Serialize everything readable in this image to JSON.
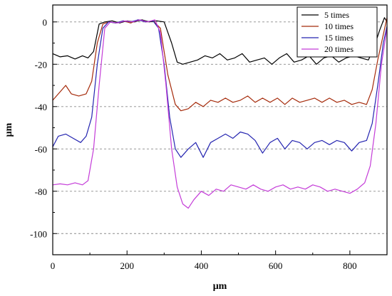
{
  "chart_data": {
    "type": "line",
    "title": "",
    "xlabel": "μm",
    "ylabel": "μm",
    "xlim": [
      0,
      900
    ],
    "ylim": [
      -110,
      8
    ],
    "xticks": [
      0,
      200,
      400,
      600,
      800
    ],
    "yticks": [
      0,
      -20,
      -40,
      -60,
      -80,
      -100
    ],
    "xtick_labels": [
      "0",
      "200",
      "400",
      "600",
      "800"
    ],
    "ytick_labels": [
      "0",
      "-20",
      "-40",
      "-60",
      "-80",
      "-100"
    ],
    "grid": "horizontal dashed",
    "legend_position": "top-right",
    "series": [
      {
        "name": "5 times",
        "color": "#000000",
        "points": [
          [
            0,
            -15
          ],
          [
            20,
            -16.5
          ],
          [
            40,
            -16
          ],
          [
            60,
            -17.5
          ],
          [
            80,
            -16
          ],
          [
            95,
            -17
          ],
          [
            110,
            -14
          ],
          [
            125,
            -1
          ],
          [
            140,
            0
          ],
          [
            160,
            0.5
          ],
          [
            180,
            -0.5
          ],
          [
            200,
            0.5
          ],
          [
            220,
            0
          ],
          [
            240,
            1
          ],
          [
            260,
            0
          ],
          [
            280,
            0.5
          ],
          [
            300,
            0
          ],
          [
            320,
            -10
          ],
          [
            335,
            -19
          ],
          [
            350,
            -20
          ],
          [
            370,
            -19
          ],
          [
            390,
            -18
          ],
          [
            410,
            -16
          ],
          [
            430,
            -17
          ],
          [
            450,
            -15
          ],
          [
            470,
            -18
          ],
          [
            490,
            -17
          ],
          [
            510,
            -15
          ],
          [
            530,
            -19
          ],
          [
            550,
            -18
          ],
          [
            570,
            -17
          ],
          [
            590,
            -20
          ],
          [
            610,
            -17
          ],
          [
            630,
            -15
          ],
          [
            650,
            -19
          ],
          [
            670,
            -18
          ],
          [
            690,
            -16
          ],
          [
            710,
            -20
          ],
          [
            730,
            -17
          ],
          [
            750,
            -16
          ],
          [
            770,
            -19
          ],
          [
            790,
            -17
          ],
          [
            810,
            -16
          ],
          [
            830,
            -17
          ],
          [
            850,
            -18
          ],
          [
            865,
            -12
          ],
          [
            880,
            -4
          ],
          [
            893,
            2
          ],
          [
            900,
            0
          ]
        ]
      },
      {
        "name": "10 times",
        "color": "#a52a0a",
        "points": [
          [
            0,
            -37
          ],
          [
            20,
            -33
          ],
          [
            35,
            -30
          ],
          [
            50,
            -34
          ],
          [
            70,
            -35
          ],
          [
            90,
            -34
          ],
          [
            105,
            -28
          ],
          [
            120,
            -10
          ],
          [
            135,
            -1
          ],
          [
            150,
            0
          ],
          [
            170,
            -0.5
          ],
          [
            190,
            0.5
          ],
          [
            210,
            -0.5
          ],
          [
            230,
            1
          ],
          [
            250,
            0
          ],
          [
            270,
            0.5
          ],
          [
            290,
            -3
          ],
          [
            310,
            -25
          ],
          [
            330,
            -39
          ],
          [
            345,
            -42
          ],
          [
            365,
            -41
          ],
          [
            385,
            -38
          ],
          [
            405,
            -40
          ],
          [
            425,
            -37
          ],
          [
            445,
            -38
          ],
          [
            465,
            -36
          ],
          [
            485,
            -38
          ],
          [
            505,
            -37
          ],
          [
            525,
            -35
          ],
          [
            545,
            -38
          ],
          [
            565,
            -36
          ],
          [
            585,
            -38
          ],
          [
            605,
            -36
          ],
          [
            625,
            -39
          ],
          [
            645,
            -36
          ],
          [
            665,
            -38
          ],
          [
            685,
            -37
          ],
          [
            705,
            -36
          ],
          [
            725,
            -38
          ],
          [
            745,
            -36
          ],
          [
            765,
            -38
          ],
          [
            785,
            -37
          ],
          [
            805,
            -39
          ],
          [
            825,
            -38
          ],
          [
            845,
            -39
          ],
          [
            860,
            -32
          ],
          [
            875,
            -18
          ],
          [
            890,
            -6
          ],
          [
            900,
            2
          ]
        ]
      },
      {
        "name": "15 times",
        "color": "#2424b0",
        "points": [
          [
            0,
            -59
          ],
          [
            15,
            -54
          ],
          [
            35,
            -53
          ],
          [
            55,
            -55
          ],
          [
            75,
            -57
          ],
          [
            90,
            -54
          ],
          [
            105,
            -45
          ],
          [
            120,
            -20
          ],
          [
            135,
            -3
          ],
          [
            150,
            0
          ],
          [
            170,
            -0.5
          ],
          [
            190,
            0.5
          ],
          [
            210,
            0
          ],
          [
            230,
            1
          ],
          [
            250,
            0
          ],
          [
            270,
            0.5
          ],
          [
            285,
            -3
          ],
          [
            300,
            -20
          ],
          [
            315,
            -45
          ],
          [
            330,
            -60
          ],
          [
            345,
            -64
          ],
          [
            365,
            -60
          ],
          [
            385,
            -57
          ],
          [
            405,
            -64
          ],
          [
            425,
            -57
          ],
          [
            445,
            -55
          ],
          [
            465,
            -53
          ],
          [
            485,
            -55
          ],
          [
            505,
            -52
          ],
          [
            525,
            -53
          ],
          [
            545,
            -56
          ],
          [
            565,
            -62
          ],
          [
            585,
            -57
          ],
          [
            605,
            -55
          ],
          [
            625,
            -60
          ],
          [
            645,
            -56
          ],
          [
            665,
            -57
          ],
          [
            685,
            -60
          ],
          [
            705,
            -57
          ],
          [
            725,
            -56
          ],
          [
            745,
            -58
          ],
          [
            765,
            -56
          ],
          [
            785,
            -57
          ],
          [
            805,
            -61
          ],
          [
            825,
            -57
          ],
          [
            845,
            -56
          ],
          [
            860,
            -48
          ],
          [
            875,
            -30
          ],
          [
            890,
            -10
          ],
          [
            900,
            -2
          ]
        ]
      },
      {
        "name": "20 times",
        "color": "#c43cd8",
        "points": [
          [
            0,
            -77
          ],
          [
            20,
            -76.5
          ],
          [
            40,
            -77
          ],
          [
            60,
            -76
          ],
          [
            80,
            -77
          ],
          [
            95,
            -75
          ],
          [
            110,
            -60
          ],
          [
            125,
            -30
          ],
          [
            140,
            -3
          ],
          [
            155,
            0
          ],
          [
            175,
            -0.5
          ],
          [
            195,
            0.5
          ],
          [
            215,
            0
          ],
          [
            235,
            1
          ],
          [
            255,
            0
          ],
          [
            275,
            1
          ],
          [
            290,
            -5
          ],
          [
            305,
            -30
          ],
          [
            320,
            -60
          ],
          [
            335,
            -78
          ],
          [
            350,
            -86
          ],
          [
            365,
            -88
          ],
          [
            380,
            -84
          ],
          [
            400,
            -80
          ],
          [
            420,
            -82
          ],
          [
            440,
            -79
          ],
          [
            460,
            -80
          ],
          [
            480,
            -77
          ],
          [
            500,
            -78
          ],
          [
            520,
            -79
          ],
          [
            540,
            -77
          ],
          [
            560,
            -79
          ],
          [
            580,
            -80
          ],
          [
            600,
            -78
          ],
          [
            620,
            -77
          ],
          [
            640,
            -79
          ],
          [
            660,
            -78
          ],
          [
            680,
            -79
          ],
          [
            700,
            -77
          ],
          [
            720,
            -78
          ],
          [
            740,
            -80
          ],
          [
            760,
            -79
          ],
          [
            780,
            -80
          ],
          [
            800,
            -81
          ],
          [
            820,
            -79
          ],
          [
            840,
            -76
          ],
          [
            855,
            -68
          ],
          [
            870,
            -48
          ],
          [
            885,
            -20
          ],
          [
            900,
            -3
          ]
        ]
      }
    ]
  }
}
